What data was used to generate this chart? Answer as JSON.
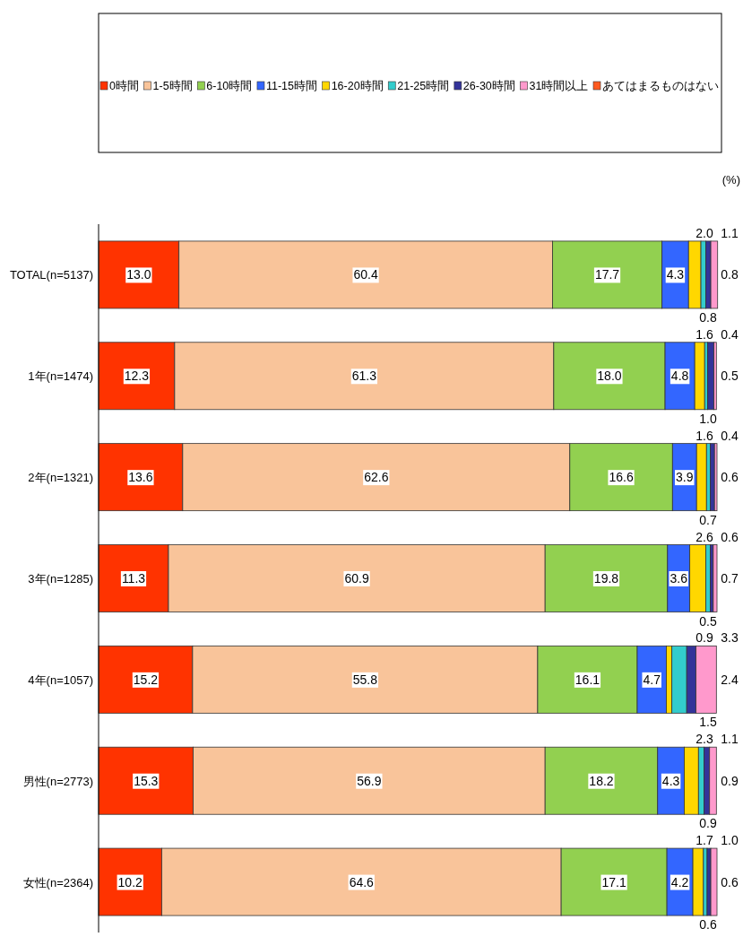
{
  "chart_data": {
    "type": "bar",
    "orientation": "horizontal",
    "stacked": true,
    "legend": "top",
    "tick_labels": "y",
    "xlim": [
      0,
      100
    ],
    "annotations": [
      "(%)"
    ],
    "categories": [
      "TOTAL(n=5137)",
      "1年(n=1474)",
      "2年(n=1321)",
      "3年(n=1285)",
      "4年(n=1057)",
      "男性(n=2773)",
      "女性(n=2364)"
    ],
    "series": [
      {
        "name": "0時間",
        "color": "#ff3300",
        "values": [
          13.0,
          12.3,
          13.6,
          11.3,
          15.2,
          15.3,
          10.2
        ],
        "value_labels": [
          "13.0",
          "12.3",
          "13.6",
          "11.3",
          "15.2",
          "15.3",
          "10.2"
        ]
      },
      {
        "name": "1-5時間",
        "color": "#f9c49a",
        "values": [
          60.4,
          61.3,
          62.6,
          60.9,
          55.8,
          56.9,
          64.6
        ],
        "value_labels": [
          "60.4",
          "61.3",
          "62.6",
          "60.9",
          "55.8",
          "56.9",
          "64.6"
        ]
      },
      {
        "name": "6-10時間",
        "color": "#92d050",
        "values": [
          17.7,
          18.0,
          16.6,
          19.8,
          16.1,
          18.2,
          17.1
        ],
        "value_labels": [
          "17.7",
          "18.0",
          "16.6",
          "19.8",
          "16.1",
          "18.2",
          "17.1"
        ]
      },
      {
        "name": "11-15時間",
        "color": "#3366ff",
        "values": [
          4.3,
          4.8,
          3.9,
          3.6,
          4.7,
          4.3,
          4.2
        ],
        "value_labels": [
          "4.3",
          "4.8",
          "3.9",
          "3.6",
          "4.7",
          "4.3",
          "4.2"
        ]
      },
      {
        "name": "16-20時間",
        "color": "#ffd700",
        "values": [
          2.0,
          1.6,
          1.6,
          2.6,
          0.9,
          2.3,
          1.7
        ],
        "value_labels": [
          "2.0",
          "1.6",
          "1.6",
          "2.6",
          "0.9",
          "2.3",
          "1.7"
        ]
      },
      {
        "name": "21-25時間",
        "color": "#33cccc",
        "values": [
          0.8,
          0.5,
          0.6,
          0.7,
          2.4,
          0.9,
          0.6
        ],
        "value_labels": [
          "0.8",
          "0.5",
          "0.6",
          "0.7",
          "2.4",
          "0.9",
          "0.6"
        ]
      },
      {
        "name": "26-30時間",
        "color": "#333399",
        "values": [
          0.8,
          1.0,
          0.7,
          0.5,
          1.5,
          0.9,
          0.6
        ],
        "value_labels": [
          "0.8",
          "1.0",
          "0.7",
          "0.5",
          "1.5",
          "0.9",
          "0.6"
        ]
      },
      {
        "name": "31時間以上",
        "color": "#ff99cc",
        "values": [
          1.1,
          0.4,
          0.4,
          0.6,
          3.3,
          1.1,
          1.0
        ],
        "value_labels": [
          "1.1",
          "0.4",
          "0.4",
          "0.6",
          "3.3",
          "1.1",
          "1.0"
        ]
      },
      {
        "name": "あてはまるものはない",
        "color": "#ff5a1f",
        "values": [
          null,
          null,
          null,
          null,
          null,
          null,
          null
        ]
      }
    ]
  }
}
